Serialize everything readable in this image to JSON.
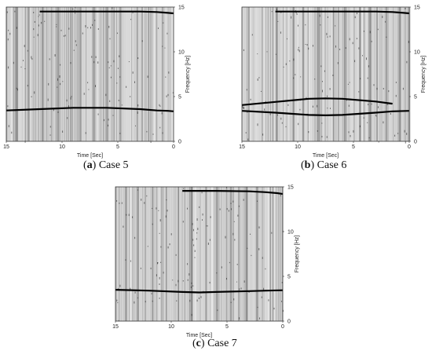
{
  "chart_data": [
    {
      "type": "line",
      "panel": "a",
      "caption_letter": "a",
      "caption_text": "Case 5",
      "xlabel": "Time [Sec]",
      "ylabel": "Frequency [Hz]",
      "xlim": [
        15,
        0
      ],
      "ylim": [
        0,
        15
      ],
      "x_ticks": [
        15,
        10,
        5,
        0
      ],
      "y_ticks": [
        0,
        5,
        10,
        15
      ],
      "series": [
        {
          "x": [
            15,
            12,
            9,
            6,
            3,
            1.5,
            0.5,
            0
          ],
          "y": [
            3.45,
            3.6,
            3.75,
            3.75,
            3.6,
            3.45,
            3.4,
            3.35
          ]
        },
        {
          "x": [
            12,
            9,
            6,
            3,
            1.5,
            0.5,
            0
          ],
          "y": [
            14.5,
            14.5,
            14.5,
            14.5,
            14.45,
            14.35,
            14.3
          ]
        }
      ]
    },
    {
      "type": "line",
      "panel": "b",
      "caption_letter": "b",
      "caption_text": "Case 6",
      "xlabel": "Time [Sec]",
      "ylabel": "Frequency [Hz]",
      "xlim": [
        15,
        0
      ],
      "ylim": [
        0,
        15
      ],
      "x_ticks": [
        15,
        10,
        5,
        0
      ],
      "y_ticks": [
        0,
        5,
        10,
        15
      ],
      "series": [
        {
          "x": [
            15,
            12,
            9,
            7.5,
            6,
            3,
            1.5,
            0
          ],
          "y": [
            3.4,
            3.2,
            2.95,
            2.9,
            2.95,
            3.2,
            3.35,
            3.4
          ]
        },
        {
          "x": [
            15,
            12,
            9,
            7.5,
            6,
            3,
            1.5
          ],
          "y": [
            4.05,
            4.4,
            4.75,
            4.8,
            4.75,
            4.45,
            4.2
          ]
        },
        {
          "x": [
            12,
            9,
            6,
            3,
            1.5,
            0.5,
            0
          ],
          "y": [
            14.5,
            14.5,
            14.5,
            14.5,
            14.45,
            14.35,
            14.3
          ]
        }
      ]
    },
    {
      "type": "line",
      "panel": "c",
      "caption_letter": "c",
      "caption_text": "Case 7",
      "xlabel": "Time [Sec]",
      "ylabel": "Frequency [Hz]",
      "xlim": [
        15,
        0
      ],
      "ylim": [
        0,
        15
      ],
      "x_ticks": [
        15,
        10,
        5,
        0
      ],
      "y_ticks": [
        0,
        5,
        10,
        15
      ],
      "series": [
        {
          "x": [
            15,
            12,
            9,
            7.5,
            6,
            3,
            1.5,
            0
          ],
          "y": [
            3.5,
            3.4,
            3.25,
            3.2,
            3.25,
            3.35,
            3.4,
            3.45
          ]
        },
        {
          "x": [
            9,
            6,
            3,
            1.5,
            0.5,
            0
          ],
          "y": [
            14.55,
            14.55,
            14.5,
            14.4,
            14.3,
            14.2
          ]
        }
      ]
    }
  ]
}
